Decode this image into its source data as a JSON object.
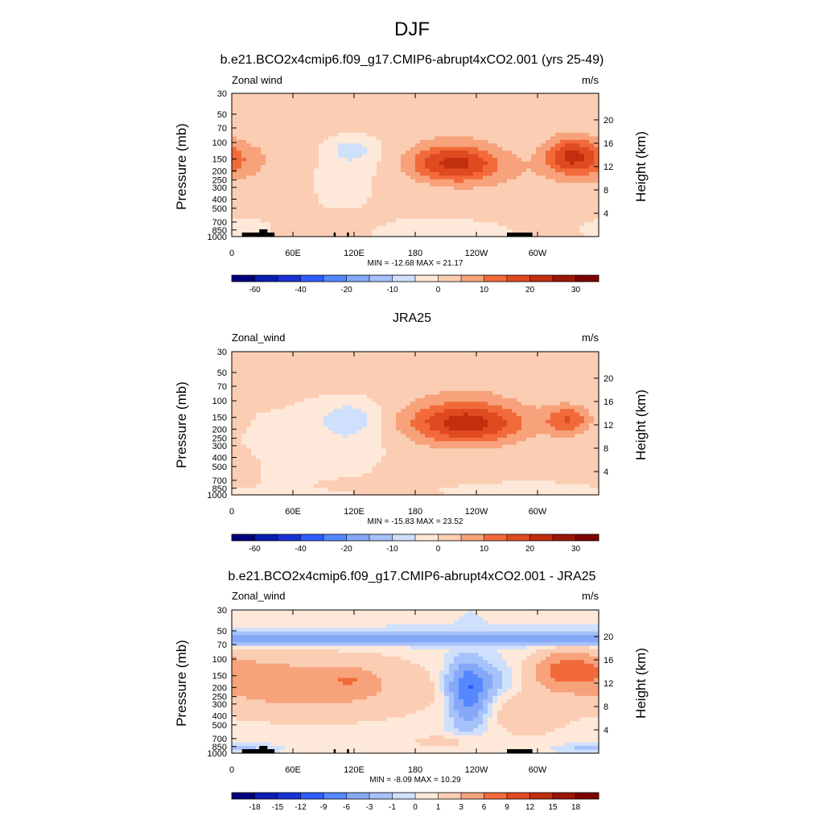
{
  "page_title": "DJF",
  "colors": {
    "blue_dark": "#00007f",
    "blue_mid": "#2e5cff",
    "white": "#ffffff",
    "orange": "#f26a3a",
    "red_dark": "#7f0000",
    "orography": "#000000"
  },
  "chart_data": [
    {
      "type": "heatmap",
      "title": "b.e21.BCO2x4cmip6.f09_g17.CMIP6-abrupt4xCO2.001 (yrs 25-49)",
      "var_label": "Zonal wind",
      "units": "m/s",
      "xlabel": "",
      "ylabel": "Pressure (mb)",
      "ylabel_right": "Height (km)",
      "x_ticks": [
        "0",
        "60E",
        "120E",
        "180",
        "120W",
        "60W"
      ],
      "y_ticks": [
        "30",
        "50",
        "70",
        "100",
        "150",
        "200",
        "250",
        "300",
        "400",
        "500",
        "700",
        "850",
        "1000"
      ],
      "y_ticks_right": [
        "20",
        "16",
        "12",
        "8",
        "4"
      ],
      "stats": "MIN = -12.68  MAX =  21.17",
      "colorbar_labels": [
        "-60",
        "-40",
        "-20",
        "-10",
        "0",
        "10",
        "20",
        "30"
      ],
      "levels": [
        -70,
        -60,
        -50,
        -40,
        -30,
        -20,
        -15,
        -10,
        -5,
        0,
        5,
        10,
        15,
        20,
        25,
        30,
        35
      ],
      "min": -12.68,
      "max": 21.17,
      "orography": true,
      "blobs": [
        {
          "lon": 218,
          "p": 165,
          "slon": 32,
          "slogp": 0.33,
          "amp": 21
        },
        {
          "lon": 332,
          "p": 140,
          "slon": 18,
          "slogp": 0.32,
          "amp": 19
        },
        {
          "lon": 5,
          "p": 160,
          "slon": 18,
          "slogp": 0.35,
          "amp": 6
        },
        {
          "lon": 35,
          "p": 140,
          "slon": 45,
          "slogp": 0.4,
          "amp": 3
        },
        {
          "lon": 118,
          "p": 115,
          "slon": 16,
          "slogp": 0.24,
          "amp": -7
        },
        {
          "lon": 110,
          "p": 170,
          "slon": 24,
          "slogp": 0.35,
          "amp": -2.5
        },
        {
          "lon": 195,
          "p": 70,
          "slon": 90,
          "slogp": 0.25,
          "amp": 3
        },
        {
          "lon": 100,
          "p": 750,
          "slon": 30,
          "slogp": 0.12,
          "amp": 4
        },
        {
          "lon": 190,
          "p": 820,
          "slon": 28,
          "slogp": 0.1,
          "amp": -5
        },
        {
          "lon": 15,
          "p": 800,
          "slon": 12,
          "slogp": 0.08,
          "amp": -3.5
        },
        {
          "lon": 280,
          "p": 240,
          "slon": 55,
          "slogp": 0.45,
          "amp": 3
        }
      ]
    },
    {
      "type": "heatmap",
      "title": "JRA25",
      "var_label": "Zonal_wind",
      "units": "m/s",
      "xlabel": "",
      "ylabel": "Pressure (mb)",
      "ylabel_right": "Height (km)",
      "x_ticks": [
        "0",
        "60E",
        "120E",
        "180",
        "120W",
        "60W"
      ],
      "y_ticks": [
        "30",
        "50",
        "70",
        "100",
        "150",
        "200",
        "250",
        "300",
        "400",
        "500",
        "700",
        "850",
        "1000"
      ],
      "y_ticks_right": [
        "20",
        "16",
        "12",
        "8",
        "4"
      ],
      "stats": "MIN = -15.83  MAX =  23.52",
      "colorbar_labels": [
        "-60",
        "-40",
        "-20",
        "-10",
        "0",
        "10",
        "20",
        "30"
      ],
      "levels": [
        -70,
        -60,
        -50,
        -40,
        -30,
        -20,
        -15,
        -10,
        -5,
        0,
        5,
        10,
        15,
        20,
        25,
        30,
        35
      ],
      "min": -15.83,
      "max": 23.52,
      "orography": false,
      "blobs": [
        {
          "lon": 230,
          "p": 170,
          "slon": 42,
          "slogp": 0.38,
          "amp": 23
        },
        {
          "lon": 330,
          "p": 160,
          "slon": 16,
          "slogp": 0.26,
          "amp": 14
        },
        {
          "lon": 115,
          "p": 160,
          "slon": 22,
          "slogp": 0.32,
          "amp": -9
        },
        {
          "lon": 70,
          "p": 380,
          "slon": 50,
          "slogp": 0.4,
          "amp": -3
        },
        {
          "lon": 215,
          "p": 60,
          "slon": 100,
          "slogp": 0.3,
          "amp": 3.5
        },
        {
          "lon": 190,
          "p": 600,
          "slon": 30,
          "slogp": 0.3,
          "amp": 4
        },
        {
          "lon": 130,
          "p": 760,
          "slon": 25,
          "slogp": 0.08,
          "amp": 4
        },
        {
          "lon": 255,
          "p": 880,
          "slon": 40,
          "slogp": 0.07,
          "amp": -4
        },
        {
          "lon": 20,
          "p": 420,
          "slon": 35,
          "slogp": 0.35,
          "amp": 2
        }
      ]
    },
    {
      "type": "heatmap",
      "title": "b.e21.BCO2x4cmip6.f09_g17.CMIP6-abrupt4xCO2.001 - JRA25",
      "var_label": "Zonal_wind",
      "units": "m/s",
      "xlabel": "",
      "ylabel": "Pressure (mb)",
      "ylabel_right": "Height (km)",
      "x_ticks": [
        "0",
        "60E",
        "120E",
        "180",
        "120W",
        "60W"
      ],
      "y_ticks": [
        "30",
        "50",
        "70",
        "100",
        "150",
        "200",
        "250",
        "300",
        "400",
        "500",
        "700",
        "850",
        "1000"
      ],
      "y_ticks_right": [
        "20",
        "16",
        "12",
        "8",
        "4"
      ],
      "stats": "MIN = -8.09  MAX =  10.29",
      "colorbar_labels": [
        "-18",
        "-15",
        "-12",
        "-9",
        "-6",
        "-3",
        "-1",
        "0",
        "1",
        "3",
        "6",
        "9",
        "12",
        "15",
        "18"
      ],
      "levels": [
        -21,
        -18,
        -15,
        -12,
        -9,
        -6,
        -3,
        -1,
        0,
        1,
        3,
        6,
        9,
        12,
        15,
        18,
        21
      ],
      "min": -8.09,
      "max": 10.29,
      "orography": true,
      "blobs": [
        {
          "lon": 80,
          "p": 200,
          "slon": 80,
          "slogp": 0.55,
          "amp": 4
        },
        {
          "lon": 20,
          "p": 150,
          "slon": 30,
          "slogp": 0.3,
          "amp": 2
        },
        {
          "lon": 115,
          "p": 165,
          "slon": 15,
          "slogp": 0.18,
          "amp": 3
        },
        {
          "lon": 232,
          "p": 230,
          "slon": 12,
          "slogp": 0.5,
          "amp": -8
        },
        {
          "lon": 244,
          "p": 170,
          "slon": 22,
          "slogp": 0.3,
          "amp": -3
        },
        {
          "lon": 170,
          "p": 60,
          "slon": 200,
          "slogp": 0.1,
          "amp": -4
        },
        {
          "lon": 330,
          "p": 130,
          "slon": 22,
          "slogp": 0.3,
          "amp": 7
        },
        {
          "lon": 292,
          "p": 400,
          "slon": 25,
          "slogp": 0.4,
          "amp": 2
        },
        {
          "lon": 0,
          "p": 880,
          "slon": 22,
          "slogp": 0.06,
          "amp": -2
        },
        {
          "lon": 210,
          "p": 750,
          "slon": 30,
          "slogp": 0.12,
          "amp": 1.5
        }
      ]
    }
  ]
}
